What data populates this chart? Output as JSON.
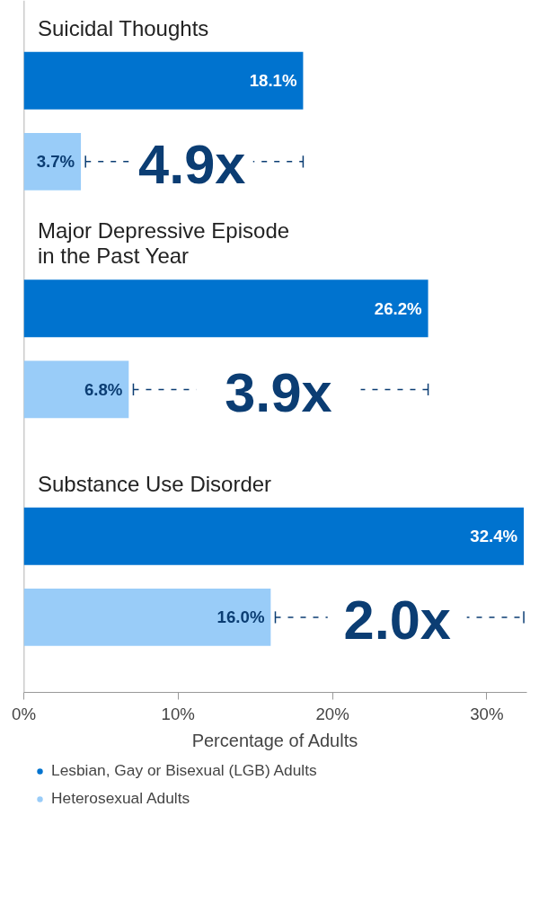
{
  "chart_data": {
    "type": "bar",
    "orientation": "horizontal",
    "categories": [
      "Suicidal Thoughts",
      "Major Depressive Episode\nin the Past Year",
      "Substance Use Disorder"
    ],
    "series": [
      {
        "name": "Lesbian, Gay or Bisexual (LGB) Adults",
        "color": "#0073cf",
        "values": [
          18.1,
          26.2,
          32.4
        ],
        "value_labels": [
          "18.1%",
          "26.2%",
          "32.4%"
        ]
      },
      {
        "name": "Heterosexual Adults",
        "color": "#99ccf8",
        "values": [
          3.7,
          6.8,
          16.0
        ],
        "value_labels": [
          "3.7%",
          "6.8%",
          "16.0%"
        ]
      }
    ],
    "annotations": [
      "4.9x",
      "3.9x",
      "2.0x"
    ],
    "xlabel": "Percentage of Adults",
    "xlim": [
      0,
      32.6
    ],
    "xticks": [
      {
        "value": 0,
        "label": "0%"
      },
      {
        "value": 10,
        "label": "10%"
      },
      {
        "value": 20,
        "label": "20%"
      },
      {
        "value": 30,
        "label": "30%"
      }
    ],
    "grid": false,
    "legend": "bottom"
  }
}
